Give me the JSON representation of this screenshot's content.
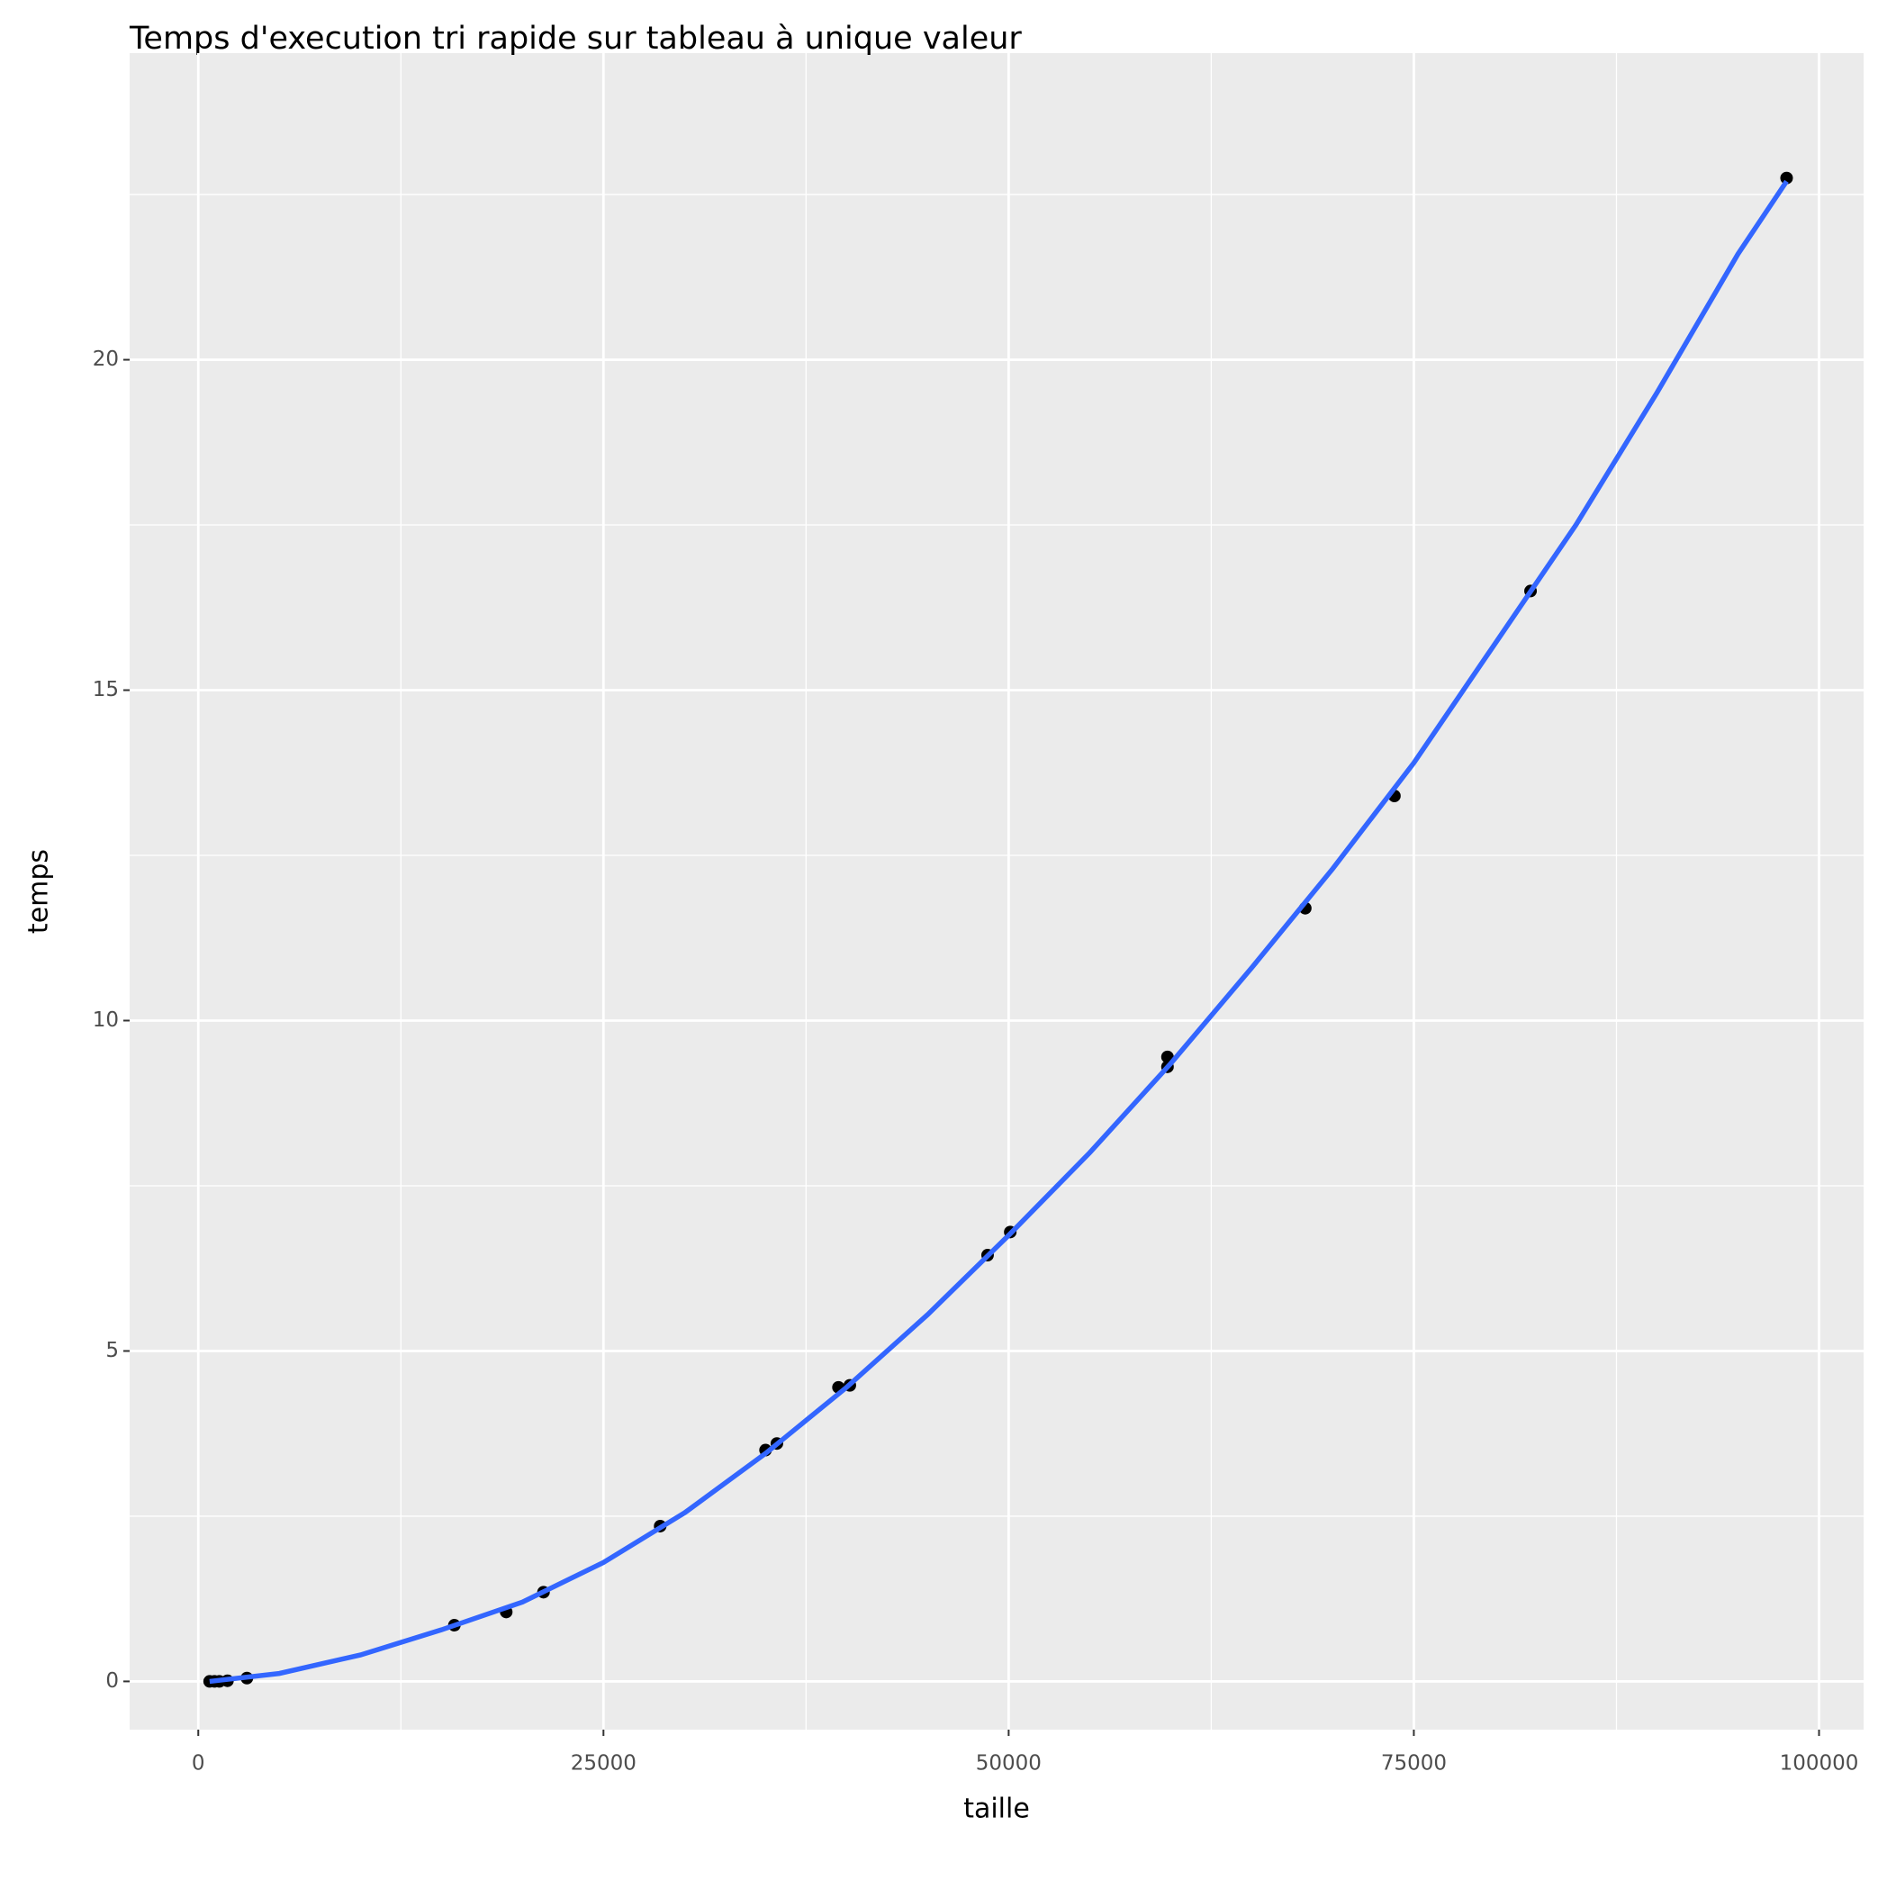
{
  "chart_data": {
    "type": "scatter",
    "title": "Temps d'execution tri rapide sur tableau à unique valeur",
    "x_label": "taille",
    "y_label": "temps",
    "xlim": [
      -4235,
      102750
    ],
    "ylim": [
      -0.73,
      24.64
    ],
    "xticks": [
      0,
      25000,
      50000,
      75000,
      100000
    ],
    "yticks": [
      0,
      5,
      10,
      15,
      20
    ],
    "grid": true,
    "series": [
      {
        "type": "scatter",
        "color": "#000000",
        "x": [
          700,
          1000,
          1300,
          1800,
          3000,
          15800,
          19000,
          21300,
          28500,
          35000,
          35700,
          39500,
          40200,
          48700,
          50100,
          59800,
          59800,
          68300,
          73800,
          82200,
          98000
        ],
        "values": [
          0,
          0,
          0,
          0.01,
          0.05,
          0.85,
          1.05,
          1.35,
          2.35,
          3.5,
          3.6,
          4.45,
          4.48,
          6.45,
          6.8,
          9.3,
          9.45,
          11.7,
          13.4,
          16.5,
          22.75
        ]
      },
      {
        "type": "line",
        "color": "#3366ff",
        "x": [
          700,
          5000,
          10000,
          15000,
          20000,
          25000,
          30000,
          35000,
          40000,
          45000,
          50000,
          55000,
          60000,
          65000,
          70000,
          75000,
          80000,
          85000,
          90000,
          95000,
          98000
        ],
        "values": [
          0,
          0.12,
          0.4,
          0.78,
          1.2,
          1.8,
          2.55,
          3.45,
          4.45,
          5.55,
          6.75,
          8.0,
          9.35,
          10.8,
          12.3,
          13.9,
          15.7,
          17.5,
          19.5,
          21.6,
          22.7
        ]
      }
    ]
  }
}
